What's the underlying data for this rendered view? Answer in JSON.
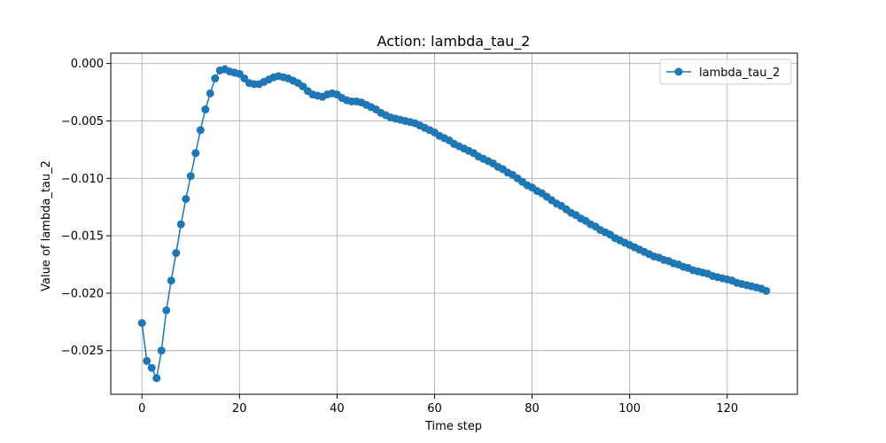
{
  "chart_data": {
    "type": "line",
    "title": "Action: lambda_tau_2",
    "xlabel": "Time step",
    "ylabel": "Value of lambda_tau_2",
    "xlim": [
      -6.4,
      134.4
    ],
    "ylim": [
      -0.0288,
      0.0009
    ],
    "xticks": [
      0,
      20,
      40,
      60,
      80,
      100,
      120
    ],
    "yticks": [
      0.0,
      -0.005,
      -0.01,
      -0.015,
      -0.02,
      -0.025
    ],
    "ytick_labels": [
      "0.000",
      "−0.005",
      "−0.010",
      "−0.015",
      "−0.020",
      "−0.025"
    ],
    "grid": true,
    "legend_position": "top-right",
    "colors": {
      "series": "#1f77b4"
    },
    "series": [
      {
        "name": "lambda_tau_2",
        "marker": "circle",
        "x": [
          0,
          1,
          2,
          3,
          4,
          5,
          6,
          7,
          8,
          9,
          10,
          11,
          12,
          13,
          14,
          15,
          16,
          17,
          18,
          19,
          20,
          21,
          22,
          23,
          24,
          25,
          26,
          27,
          28,
          29,
          30,
          31,
          32,
          33,
          34,
          35,
          36,
          37,
          38,
          39,
          40,
          41,
          42,
          43,
          44,
          45,
          46,
          47,
          48,
          49,
          50,
          51,
          52,
          53,
          54,
          55,
          56,
          57,
          58,
          59,
          60,
          61,
          62,
          63,
          64,
          65,
          66,
          67,
          68,
          69,
          70,
          71,
          72,
          73,
          74,
          75,
          76,
          77,
          78,
          79,
          80,
          81,
          82,
          83,
          84,
          85,
          86,
          87,
          88,
          89,
          90,
          91,
          92,
          93,
          94,
          95,
          96,
          97,
          98,
          99,
          100,
          101,
          102,
          103,
          104,
          105,
          106,
          107,
          108,
          109,
          110,
          111,
          112,
          113,
          114,
          115,
          116,
          117,
          118,
          119,
          120,
          121,
          122,
          123,
          124,
          125,
          126,
          127,
          128
        ],
        "y": [
          -0.0226,
          -0.0259,
          -0.0265,
          -0.0274,
          -0.025,
          -0.0215,
          -0.0189,
          -0.0165,
          -0.014,
          -0.0118,
          -0.0098,
          -0.0078,
          -0.0058,
          -0.004,
          -0.0026,
          -0.0013,
          -0.0006,
          -0.0005,
          -0.0007,
          -0.0008,
          -0.0009,
          -0.0013,
          -0.0017,
          -0.0018,
          -0.0018,
          -0.0016,
          -0.0014,
          -0.0012,
          -0.0011,
          -0.0012,
          -0.0013,
          -0.0015,
          -0.0017,
          -0.002,
          -0.0024,
          -0.0027,
          -0.0028,
          -0.0029,
          -0.0027,
          -0.0026,
          -0.0027,
          -0.003,
          -0.0032,
          -0.0033,
          -0.0033,
          -0.0034,
          -0.0036,
          -0.0038,
          -0.004,
          -0.0043,
          -0.0045,
          -0.0047,
          -0.0048,
          -0.0049,
          -0.005,
          -0.0051,
          -0.0052,
          -0.0054,
          -0.0056,
          -0.0058,
          -0.006,
          -0.0063,
          -0.0065,
          -0.0067,
          -0.007,
          -0.0072,
          -0.0074,
          -0.0076,
          -0.0078,
          -0.0081,
          -0.0083,
          -0.0085,
          -0.0087,
          -0.009,
          -0.0092,
          -0.0095,
          -0.0097,
          -0.01,
          -0.0103,
          -0.0106,
          -0.0108,
          -0.0111,
          -0.0113,
          -0.0116,
          -0.0119,
          -0.0122,
          -0.0124,
          -0.0127,
          -0.013,
          -0.0132,
          -0.0135,
          -0.0137,
          -0.014,
          -0.0142,
          -0.0145,
          -0.0147,
          -0.0149,
          -0.0152,
          -0.0154,
          -0.0156,
          -0.0158,
          -0.016,
          -0.0162,
          -0.0164,
          -0.0166,
          -0.0168,
          -0.0169,
          -0.0171,
          -0.0172,
          -0.0174,
          -0.0175,
          -0.0177,
          -0.0178,
          -0.018,
          -0.0181,
          -0.0182,
          -0.0183,
          -0.0185,
          -0.0186,
          -0.0187,
          -0.0188,
          -0.0189,
          -0.0191,
          -0.0192,
          -0.0193,
          -0.0194,
          -0.0195,
          -0.0196,
          -0.0198
        ]
      }
    ]
  }
}
